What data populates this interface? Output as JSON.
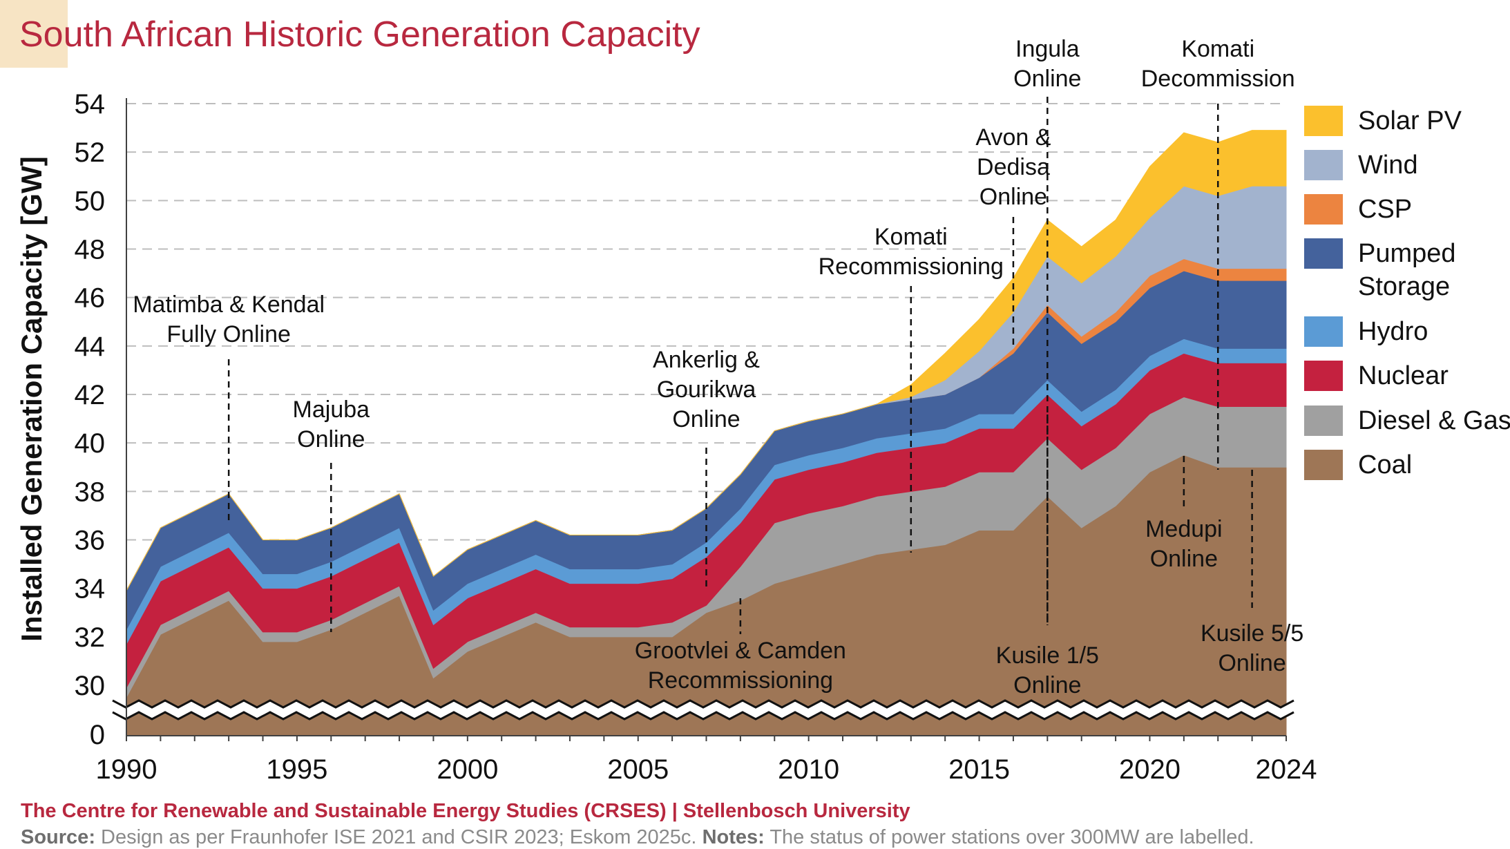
{
  "title": "South African Historic Generation Capacity",
  "colors": {
    "title": "#b8283f",
    "gridline": "#bdbdbd",
    "axis": "#404040"
  },
  "footer": {
    "credit": "The Centre for Renewable and Sustainable Energy Studies (CRSES) | Stellenbosch University",
    "source_label": "Source:",
    "source_text": "Design as per Fraunhofer ISE 2021 and CSIR 2023; Eskom 2025c.",
    "notes_label": "Notes:",
    "notes_text": "The status of power stations over 300MW are labelled."
  },
  "chart_data": {
    "type": "area",
    "stacked": true,
    "title": "South African Historic Generation Capacity",
    "xlabel": "",
    "ylabel": "Installed Generation Capacity [GW]",
    "xlim": [
      1990,
      2024
    ],
    "ylim": [
      0,
      54
    ],
    "y_axis_break": [
      0,
      29
    ],
    "x_ticks": [
      1990,
      1995,
      2000,
      2005,
      2010,
      2015,
      2020,
      2024
    ],
    "y_ticks": [
      0,
      30,
      32,
      34,
      36,
      38,
      40,
      42,
      44,
      46,
      48,
      50,
      52,
      54
    ],
    "grid": true,
    "legend_position": "right",
    "x": [
      1990,
      1991,
      1992,
      1993,
      1994,
      1995,
      1996,
      1997,
      1998,
      1999,
      2000,
      2001,
      2002,
      2003,
      2004,
      2005,
      2006,
      2007,
      2008,
      2009,
      2010,
      2011,
      2012,
      2013,
      2014,
      2015,
      2016,
      2017,
      2018,
      2019,
      2020,
      2021,
      2022,
      2023,
      2024
    ],
    "series": [
      {
        "name": "Coal",
        "color": "#9e7656",
        "values": [
          29.5,
          32.1,
          32.8,
          33.5,
          31.8,
          31.8,
          32.3,
          33.0,
          33.7,
          30.3,
          31.4,
          32.0,
          32.6,
          32.0,
          32.0,
          32.0,
          32.0,
          33.0,
          33.5,
          34.2,
          34.6,
          35.0,
          35.4,
          35.6,
          35.8,
          36.4,
          36.4,
          37.8,
          36.5,
          37.4,
          38.8,
          39.5,
          39.0,
          39.0,
          39.0
        ]
      },
      {
        "name": "Diesel & Gas",
        "color": "#a0a0a0",
        "values": [
          0.4,
          0.4,
          0.4,
          0.4,
          0.4,
          0.4,
          0.4,
          0.4,
          0.4,
          0.4,
          0.4,
          0.4,
          0.4,
          0.4,
          0.4,
          0.4,
          0.6,
          0.3,
          1.4,
          2.5,
          2.5,
          2.4,
          2.4,
          2.4,
          2.4,
          2.4,
          2.4,
          2.4,
          2.4,
          2.4,
          2.4,
          2.4,
          2.5,
          2.5,
          2.5
        ]
      },
      {
        "name": "Nuclear",
        "color": "#c4213f",
        "values": [
          1.8,
          1.8,
          1.8,
          1.8,
          1.8,
          1.8,
          1.8,
          1.8,
          1.8,
          1.8,
          1.8,
          1.8,
          1.8,
          1.8,
          1.8,
          1.8,
          1.8,
          2.0,
          1.8,
          1.8,
          1.8,
          1.8,
          1.8,
          1.8,
          1.8,
          1.8,
          1.8,
          1.8,
          1.8,
          1.8,
          1.8,
          1.8,
          1.8,
          1.8,
          1.8
        ]
      },
      {
        "name": "Hydro",
        "color": "#5b9bd5",
        "values": [
          0.6,
          0.6,
          0.6,
          0.6,
          0.6,
          0.6,
          0.6,
          0.6,
          0.6,
          0.6,
          0.6,
          0.6,
          0.6,
          0.6,
          0.6,
          0.6,
          0.6,
          0.6,
          0.6,
          0.6,
          0.6,
          0.6,
          0.6,
          0.6,
          0.6,
          0.6,
          0.6,
          0.6,
          0.6,
          0.6,
          0.6,
          0.6,
          0.6,
          0.6,
          0.6
        ]
      },
      {
        "name": "Pumped Storage",
        "color": "#44629c",
        "values": [
          1.6,
          1.6,
          1.6,
          1.6,
          1.4,
          1.4,
          1.4,
          1.4,
          1.4,
          1.4,
          1.4,
          1.4,
          1.4,
          1.4,
          1.4,
          1.4,
          1.4,
          1.4,
          1.4,
          1.4,
          1.4,
          1.4,
          1.4,
          1.4,
          1.4,
          1.5,
          2.5,
          2.8,
          2.8,
          2.8,
          2.8,
          2.8,
          2.8,
          2.8,
          2.8
        ]
      },
      {
        "name": "CSP",
        "color": "#ec8440",
        "values": [
          0,
          0,
          0,
          0,
          0,
          0,
          0,
          0,
          0,
          0,
          0,
          0,
          0,
          0,
          0,
          0,
          0,
          0,
          0,
          0,
          0,
          0,
          0,
          0,
          0,
          0,
          0.2,
          0.3,
          0.3,
          0.4,
          0.5,
          0.5,
          0.5,
          0.5,
          0.5
        ]
      },
      {
        "name": "Wind",
        "color": "#a2b3ce",
        "values": [
          0,
          0,
          0,
          0,
          0,
          0,
          0,
          0,
          0,
          0,
          0,
          0,
          0,
          0,
          0,
          0,
          0,
          0,
          0,
          0,
          0,
          0,
          0,
          0.1,
          0.6,
          1.1,
          1.5,
          2.0,
          2.2,
          2.3,
          2.4,
          3.0,
          3.0,
          3.4,
          3.4
        ]
      },
      {
        "name": "Solar PV",
        "color": "#fbc02d",
        "values": [
          0,
          0,
          0,
          0,
          0,
          0,
          0,
          0,
          0,
          0,
          0,
          0,
          0,
          0,
          0,
          0,
          0,
          0,
          0,
          0,
          0,
          0,
          0,
          0.5,
          1.1,
          1.3,
          1.4,
          1.5,
          1.5,
          1.5,
          2.1,
          2.2,
          2.2,
          2.3,
          2.3
        ]
      }
    ],
    "legend": [
      {
        "label": "Solar PV",
        "color": "#fbc02d"
      },
      {
        "label": "Wind",
        "color": "#a2b3ce"
      },
      {
        "label": "CSP",
        "color": "#ec8440"
      },
      {
        "label": "Pumped Storage",
        "color": "#44629c"
      },
      {
        "label": "Hydro",
        "color": "#5b9bd5"
      },
      {
        "label": "Nuclear",
        "color": "#c4213f"
      },
      {
        "label": "Diesel & Gas",
        "color": "#a0a0a0"
      },
      {
        "label": "Coal",
        "color": "#9e7656"
      }
    ],
    "annotations": [
      {
        "text": [
          "Matimba & Kendal",
          "Fully Online"
        ],
        "year": 1993,
        "label_above": true
      },
      {
        "text": [
          "Majuba",
          "Online"
        ],
        "year": 1996,
        "label_above": true
      },
      {
        "text": [
          "Ankerlig &",
          "Gourikwa",
          "Online"
        ],
        "year": 2007,
        "label_above": true
      },
      {
        "text": [
          "Grootvlei & Camden",
          "Recommissioning"
        ],
        "year": 2008,
        "label_above": false
      },
      {
        "text": [
          "Komati",
          "Recommissioning"
        ],
        "year": 2013,
        "label_above": true
      },
      {
        "text": [
          "Avon &",
          "Dedisa",
          "Online"
        ],
        "year": 2016,
        "label_above": true
      },
      {
        "text": [
          "Ingula",
          "Online"
        ],
        "year": 2017,
        "label_above": true
      },
      {
        "text": [
          "Kusile 1/5",
          "Online"
        ],
        "year": 2017,
        "label_above": false
      },
      {
        "text": [
          "Medupi",
          "Online"
        ],
        "year": 2021,
        "label_above": false
      },
      {
        "text": [
          "Komati",
          "Decommission"
        ],
        "year": 2022,
        "label_above": true
      },
      {
        "text": [
          "Kusile 5/5",
          "Online"
        ],
        "year": 2023,
        "label_above": false
      }
    ]
  }
}
